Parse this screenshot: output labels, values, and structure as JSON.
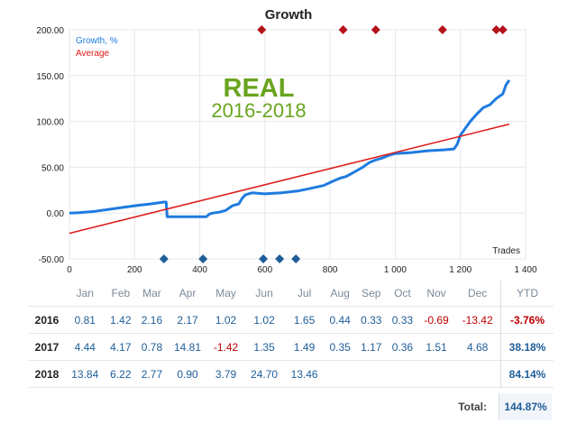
{
  "chart_data": {
    "type": "line",
    "title": "Growth",
    "overlay_title": "REAL",
    "overlay_subtitle": "2016-2018",
    "xlabel": "Trades",
    "ylabel": "",
    "xlim": [
      0,
      1400
    ],
    "ylim": [
      -50,
      200
    ],
    "x_ticks": [
      "0",
      "200",
      "400",
      "600",
      "800",
      "1 000",
      "1 200",
      "1 400"
    ],
    "x_tick_values": [
      0,
      200,
      400,
      600,
      800,
      1000,
      1200,
      1400
    ],
    "y_ticks": [
      "200.00",
      "150.00",
      "100.00",
      "50.00",
      "0.00",
      "-50.00"
    ],
    "y_tick_values": [
      200,
      150,
      100,
      50,
      0,
      -50
    ],
    "grid": true,
    "legend_position": "top-left",
    "series": [
      {
        "name": "Growth, %",
        "color": "#1e7be0",
        "x": [
          0,
          30,
          80,
          140,
          200,
          250,
          290,
          297,
          300,
          330,
          380,
          420,
          430,
          440,
          460,
          480,
          500,
          520,
          530,
          540,
          560,
          600,
          650,
          700,
          740,
          780,
          810,
          830,
          850,
          880,
          900,
          920,
          940,
          960,
          980,
          1000,
          1050,
          1100,
          1150,
          1180,
          1190,
          1200,
          1210,
          1230,
          1250,
          1270,
          1290,
          1310,
          1330,
          1340,
          1350
        ],
        "y": [
          0,
          0.5,
          2,
          5,
          8,
          10,
          12,
          12,
          -4,
          -4,
          -4,
          -4,
          -1,
          0,
          1,
          3,
          8,
          10,
          16,
          20,
          22,
          21,
          22,
          24,
          27,
          30,
          35,
          38,
          40,
          46,
          50,
          55,
          58,
          60,
          63,
          65,
          66,
          68,
          69,
          70,
          75,
          85,
          90,
          100,
          108,
          115,
          118,
          125,
          130,
          140,
          145
        ]
      },
      {
        "name": "Average",
        "color": "#e01a1a",
        "x": [
          0,
          1350
        ],
        "y": [
          -22,
          97
        ]
      }
    ],
    "top_markers_x": [
      590,
      840,
      940,
      1145,
      1310,
      1330
    ],
    "bottom_markers_x": [
      290,
      410,
      595,
      645,
      695
    ],
    "marker_colors": {
      "top": "#b5121b",
      "bottom": "#1f5e99"
    }
  },
  "table": {
    "months": [
      "Jan",
      "Feb",
      "Mar",
      "Apr",
      "May",
      "Jun",
      "Jul",
      "Aug",
      "Sep",
      "Oct",
      "Nov",
      "Dec"
    ],
    "ytd_label": "YTD",
    "rows": [
      {
        "year": "2016",
        "values": [
          "0.81",
          "1.42",
          "2.16",
          "2.17",
          "1.02",
          "1.02",
          "1.65",
          "0.44",
          "0.33",
          "0.33",
          "-0.69",
          "-13.42"
        ],
        "ytd": "-3.76%"
      },
      {
        "year": "2017",
        "values": [
          "4.44",
          "4.17",
          "0.78",
          "14.81",
          "-1.42",
          "1.35",
          "1.49",
          "0.35",
          "1.17",
          "0.36",
          "1.51",
          "4.68"
        ],
        "ytd": "38.18%"
      },
      {
        "year": "2018",
        "values": [
          "13.84",
          "6.22",
          "2.77",
          "0.90",
          "3.79",
          "24.70",
          "13.46",
          "",
          "",
          "",
          "",
          ""
        ],
        "ytd": "84.14%"
      }
    ],
    "total_label": "Total:",
    "total_value": "144.87%"
  }
}
